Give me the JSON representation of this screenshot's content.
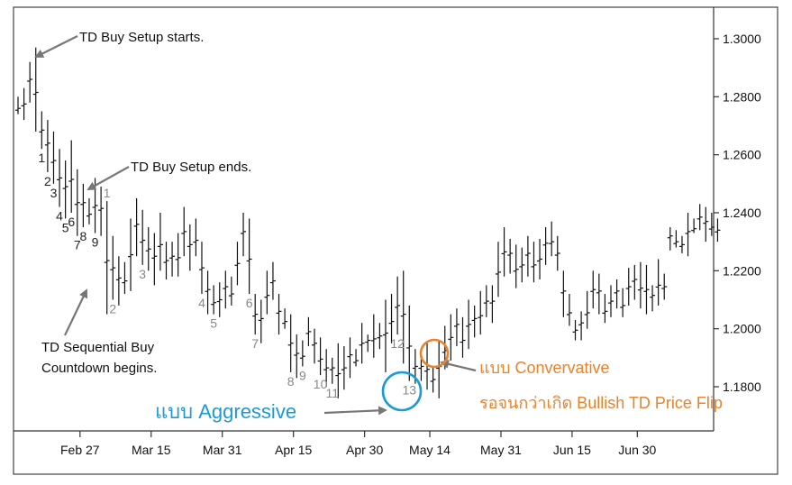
{
  "chart_data": {
    "type": "ohlc",
    "title": "",
    "xlabel": "",
    "ylabel": "",
    "ylim": [
      1.17,
      1.3055
    ],
    "y_ticks": [
      "1.3000",
      "1.2800",
      "1.2600",
      "1.2400",
      "1.2200",
      "1.2000",
      "1.1800"
    ],
    "y_tick_values": [
      1.3,
      1.28,
      1.26,
      1.24,
      1.22,
      1.2,
      1.18
    ],
    "x_tick_labels": [
      "Feb 27",
      "Mar 15",
      "Mar 31",
      "Apr 15",
      "Apr 30",
      "May 14",
      "May 31",
      "Jun 15",
      "Jun 30"
    ],
    "x_tick_index": [
      10,
      22,
      34,
      46,
      58,
      69,
      81,
      93,
      104
    ],
    "grid": false,
    "bars": [
      [
        1.28,
        1.274
      ],
      [
        1.283,
        1.272
      ],
      [
        1.292,
        1.278
      ],
      [
        1.297,
        1.268
      ],
      [
        1.275,
        1.262
      ],
      [
        1.272,
        1.254
      ],
      [
        1.268,
        1.25
      ],
      [
        1.262,
        1.242
      ],
      [
        1.258,
        1.238
      ],
      [
        1.265,
        1.24
      ],
      [
        1.255,
        1.232
      ],
      [
        1.25,
        1.235
      ],
      [
        1.245,
        1.236
      ],
      [
        1.252,
        1.233
      ],
      [
        1.249,
        1.232
      ],
      [
        1.244,
        1.205
      ],
      [
        1.232,
        1.21
      ],
      [
        1.225,
        1.208
      ],
      [
        1.223,
        1.212
      ],
      [
        1.238,
        1.213
      ],
      [
        1.245,
        1.225
      ],
      [
        1.241,
        1.222
      ],
      [
        1.235,
        1.22
      ],
      [
        1.233,
        1.215
      ],
      [
        1.24,
        1.22
      ],
      [
        1.23,
        1.217
      ],
      [
        1.23,
        1.218
      ],
      [
        1.233,
        1.218
      ],
      [
        1.242,
        1.225
      ],
      [
        1.236,
        1.22
      ],
      [
        1.238,
        1.225
      ],
      [
        1.23,
        1.212
      ],
      [
        1.22,
        1.205
      ],
      [
        1.215,
        1.205
      ],
      [
        1.216,
        1.204
      ],
      [
        1.22,
        1.207
      ],
      [
        1.218,
        1.208
      ],
      [
        1.23,
        1.215
      ],
      [
        1.24,
        1.225
      ],
      [
        1.238,
        1.212
      ],
      [
        1.212,
        1.198
      ],
      [
        1.21,
        1.195
      ],
      [
        1.22,
        1.205
      ],
      [
        1.223,
        1.21
      ],
      [
        1.212,
        1.198
      ],
      [
        1.207,
        1.2
      ],
      [
        1.205,
        1.185
      ],
      [
        1.198,
        1.183
      ],
      [
        1.196,
        1.187
      ],
      [
        1.204,
        1.194
      ],
      [
        1.2,
        1.188
      ],
      [
        1.197,
        1.184
      ],
      [
        1.193,
        1.18
      ],
      [
        1.19,
        1.181
      ],
      [
        1.195,
        1.176
      ],
      [
        1.194,
        1.179
      ],
      [
        1.197,
        1.183
      ],
      [
        1.193,
        1.187
      ],
      [
        1.202,
        1.188
      ],
      [
        1.198,
        1.192
      ],
      [
        1.205,
        1.19
      ],
      [
        1.202,
        1.193
      ],
      [
        1.21,
        1.185
      ],
      [
        1.212,
        1.195
      ],
      [
        1.218,
        1.198
      ],
      [
        1.22,
        1.188
      ],
      [
        1.208,
        1.182
      ],
      [
        1.193,
        1.181
      ],
      [
        1.19,
        1.182
      ],
      [
        1.195,
        1.179
      ],
      [
        1.187,
        1.178
      ],
      [
        1.196,
        1.176
      ],
      [
        1.201,
        1.186
      ],
      [
        1.205,
        1.189
      ],
      [
        1.207,
        1.194
      ],
      [
        1.204,
        1.19
      ],
      [
        1.21,
        1.193
      ],
      [
        1.208,
        1.197
      ],
      [
        1.213,
        1.198
      ],
      [
        1.215,
        1.204
      ],
      [
        1.215,
        1.202
      ],
      [
        1.23,
        1.211
      ],
      [
        1.235,
        1.218
      ],
      [
        1.231,
        1.219
      ],
      [
        1.229,
        1.214
      ],
      [
        1.228,
        1.216
      ],
      [
        1.232,
        1.218
      ],
      [
        1.23,
        1.216
      ],
      [
        1.231,
        1.217
      ],
      [
        1.235,
        1.222
      ],
      [
        1.237,
        1.225
      ],
      [
        1.232,
        1.22
      ],
      [
        1.22,
        1.204
      ],
      [
        1.212,
        1.201
      ],
      [
        1.203,
        1.196
      ],
      [
        1.206,
        1.196
      ],
      [
        1.213,
        1.2
      ],
      [
        1.22,
        1.207
      ],
      [
        1.219,
        1.205
      ],
      [
        1.212,
        1.202
      ],
      [
        1.215,
        1.204
      ],
      [
        1.217,
        1.207
      ],
      [
        1.214,
        1.204
      ],
      [
        1.221,
        1.208
      ],
      [
        1.222,
        1.21
      ],
      [
        1.223,
        1.207
      ],
      [
        1.222,
        1.205
      ],
      [
        1.215,
        1.206
      ],
      [
        1.224,
        1.208
      ],
      [
        1.219,
        1.21
      ],
      [
        1.235,
        1.227
      ],
      [
        1.234,
        1.228
      ],
      [
        1.232,
        1.226
      ],
      [
        1.24,
        1.225
      ],
      [
        1.238,
        1.233
      ],
      [
        1.243,
        1.234
      ],
      [
        1.242,
        1.23
      ],
      [
        1.24,
        1.232
      ],
      [
        1.238,
        1.23
      ]
    ],
    "count_labels": [
      {
        "text": "1",
        "bar": 4,
        "side": "below",
        "color": "#222222"
      },
      {
        "text": "2",
        "bar": 5,
        "side": "below",
        "color": "#222222"
      },
      {
        "text": "3",
        "bar": 6,
        "side": "below",
        "color": "#222222"
      },
      {
        "text": "4",
        "bar": 7,
        "side": "below",
        "color": "#222222"
      },
      {
        "text": "5",
        "bar": 8,
        "side": "below",
        "color": "#222222"
      },
      {
        "text": "6",
        "bar": 9,
        "side": "below",
        "color": "#222222"
      },
      {
        "text": "7",
        "bar": 10,
        "side": "below",
        "color": "#222222"
      },
      {
        "text": "8",
        "bar": 11,
        "side": "below",
        "color": "#222222"
      },
      {
        "text": "9",
        "bar": 13,
        "side": "below",
        "color": "#222222"
      },
      {
        "text": "1",
        "bar": 15,
        "side": "above",
        "color": "#888888"
      },
      {
        "text": "2",
        "bar": 16,
        "side": "below",
        "color": "#888888"
      },
      {
        "text": "3",
        "bar": 21,
        "side": "below",
        "color": "#888888"
      },
      {
        "text": "4",
        "bar": 31,
        "side": "below",
        "color": "#888888"
      },
      {
        "text": "5",
        "bar": 33,
        "side": "below",
        "color": "#888888"
      },
      {
        "text": "6",
        "bar": 39,
        "side": "below",
        "color": "#888888"
      },
      {
        "text": "7",
        "bar": 40,
        "side": "below",
        "color": "#888888"
      },
      {
        "text": "8",
        "bar": 46,
        "side": "below",
        "color": "#888888"
      },
      {
        "text": "9",
        "bar": 48,
        "side": "below",
        "color": "#888888"
      },
      {
        "text": "10",
        "bar": 51,
        "side": "below",
        "color": "#888888"
      },
      {
        "text": "11",
        "bar": 53,
        "side": "below",
        "color": "#888888"
      },
      {
        "text": "12",
        "bar": 64,
        "side": "below",
        "color": "#888888"
      },
      {
        "text": "13",
        "bar": 66,
        "side": "below",
        "color": "#888888"
      }
    ],
    "annotations": {
      "setup_start": "TD Buy Setup starts.",
      "setup_end": "TD Buy Setup ends.",
      "countdown_line1": "TD Sequential Buy",
      "countdown_line2": "Countdown begins.",
      "aggressive": "แบบ Aggressive",
      "conservative": "แบบ Convervative",
      "flip": "รอจนกว่าเกิด Bullish TD Price Flip"
    },
    "colors": {
      "bars": "#111111",
      "aggressive": "#1a9ad7",
      "conservative": "#e8822c",
      "axis": "#333333",
      "grey_count": "#888888"
    }
  }
}
